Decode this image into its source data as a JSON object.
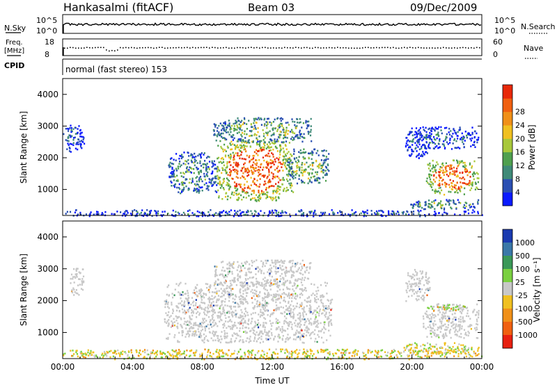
{
  "header": {
    "station": "Hankasalmi (fitACF)",
    "beam": "Beam 03",
    "date": "09/Dec/2009"
  },
  "strip_labels": {
    "nsky_label": "N.Sky",
    "nsky_ticks": [
      "10^5",
      "10^0"
    ],
    "nsearch_label": "N.Search",
    "nsearch_ticks": [
      "10^5",
      "10^0"
    ],
    "freq_label_1": "Freq.",
    "freq_label_2": "[MHz]",
    "freq_ticks": [
      "18",
      "8"
    ],
    "nave_label": "Nave",
    "nave_ticks": [
      "60",
      "0"
    ],
    "cpid_label": "CPID",
    "cpid_text": "normal (fast stereo) 153"
  },
  "chart_data": [
    {
      "type": "heatmap",
      "title": "",
      "xlabel": "",
      "ylabel": "Slant Range [km]",
      "xlim": [
        0,
        24
      ],
      "ylim": [
        180,
        4500
      ],
      "y_ticks": [
        "1000",
        "2000",
        "3000",
        "4000"
      ],
      "colorbar": {
        "label": "Power [dB]",
        "ticks": [
          "4",
          "8",
          "12",
          "16",
          "20",
          "24",
          "28"
        ],
        "colors": [
          "#0a1aff",
          "#2a4fb2",
          "#3f8a78",
          "#4fa04f",
          "#a8c83a",
          "#f0c020",
          "#f09018",
          "#f06010",
          "#e82808"
        ]
      },
      "regions": [
        {
          "t0": 0.0,
          "t1": 1.2,
          "r0": 2200,
          "r1": 3050,
          "level": 0.12
        },
        {
          "t0": 6.0,
          "t1": 8.8,
          "r0": 900,
          "r1": 2200,
          "level": 0.3
        },
        {
          "t0": 8.8,
          "t1": 13.2,
          "r0": 650,
          "r1": 2600,
          "level": 0.85
        },
        {
          "t0": 8.6,
          "t1": 14.2,
          "r0": 2500,
          "r1": 3300,
          "level": 0.4
        },
        {
          "t0": 12.8,
          "t1": 15.2,
          "r0": 1200,
          "r1": 2300,
          "level": 0.45
        },
        {
          "t0": 19.6,
          "t1": 21.0,
          "r0": 2000,
          "r1": 3000,
          "level": 0.12
        },
        {
          "t0": 20.2,
          "t1": 23.8,
          "r0": 2300,
          "r1": 3000,
          "level": 0.15
        },
        {
          "t0": 20.8,
          "t1": 23.8,
          "r0": 850,
          "r1": 1950,
          "level": 0.8
        },
        {
          "t0": 19.8,
          "t1": 23.9,
          "r0": 380,
          "r1": 700,
          "level": 0.35
        },
        {
          "t0": 0.0,
          "t1": 24.0,
          "r0": 180,
          "r1": 380,
          "level": 0.15
        }
      ]
    },
    {
      "type": "heatmap",
      "title": "",
      "xlabel": "Time UT",
      "ylabel": "Slant Range [km]",
      "xlim": [
        0,
        24
      ],
      "ylim": [
        180,
        4500
      ],
      "x_ticks": [
        "00:00",
        "04:00",
        "08:00",
        "12:00",
        "16:00",
        "20:00",
        "00:00"
      ],
      "y_ticks": [
        "1000",
        "2000",
        "3000",
        "4000"
      ],
      "colorbar": {
        "label": "Velocity [m s⁻¹]",
        "ticks": [
          "1000",
          "500",
          "100",
          "25",
          "-25",
          "-100",
          "-500",
          "-1000"
        ],
        "colors": [
          "#1a3ab0",
          "#3a78a8",
          "#3a9858",
          "#7ad040",
          "#c8c8c8",
          "#f0c020",
          "#f09018",
          "#f06010",
          "#e82010"
        ]
      },
      "regions": [
        {
          "t0": 0.4,
          "t1": 1.2,
          "r0": 2200,
          "r1": 3050,
          "v": "gray"
        },
        {
          "t0": 5.8,
          "t1": 15.4,
          "r0": 700,
          "r1": 2600,
          "v": "gray"
        },
        {
          "t0": 8.6,
          "t1": 14.2,
          "r0": 2500,
          "r1": 3300,
          "v": "gray"
        },
        {
          "t0": 19.6,
          "t1": 21.0,
          "r0": 2000,
          "r1": 3000,
          "v": "gray"
        },
        {
          "t0": 20.6,
          "t1": 23.8,
          "r0": 850,
          "r1": 1950,
          "v": "gray"
        },
        {
          "t0": 20.8,
          "t1": 23.0,
          "r0": 1700,
          "r1": 1900,
          "v": "green"
        },
        {
          "t0": 0.0,
          "t1": 24.0,
          "r0": 180,
          "r1": 500,
          "v": "lowmix"
        },
        {
          "t0": 19.2,
          "t1": 23.9,
          "r0": 350,
          "r1": 700,
          "v": "orange"
        }
      ]
    }
  ]
}
